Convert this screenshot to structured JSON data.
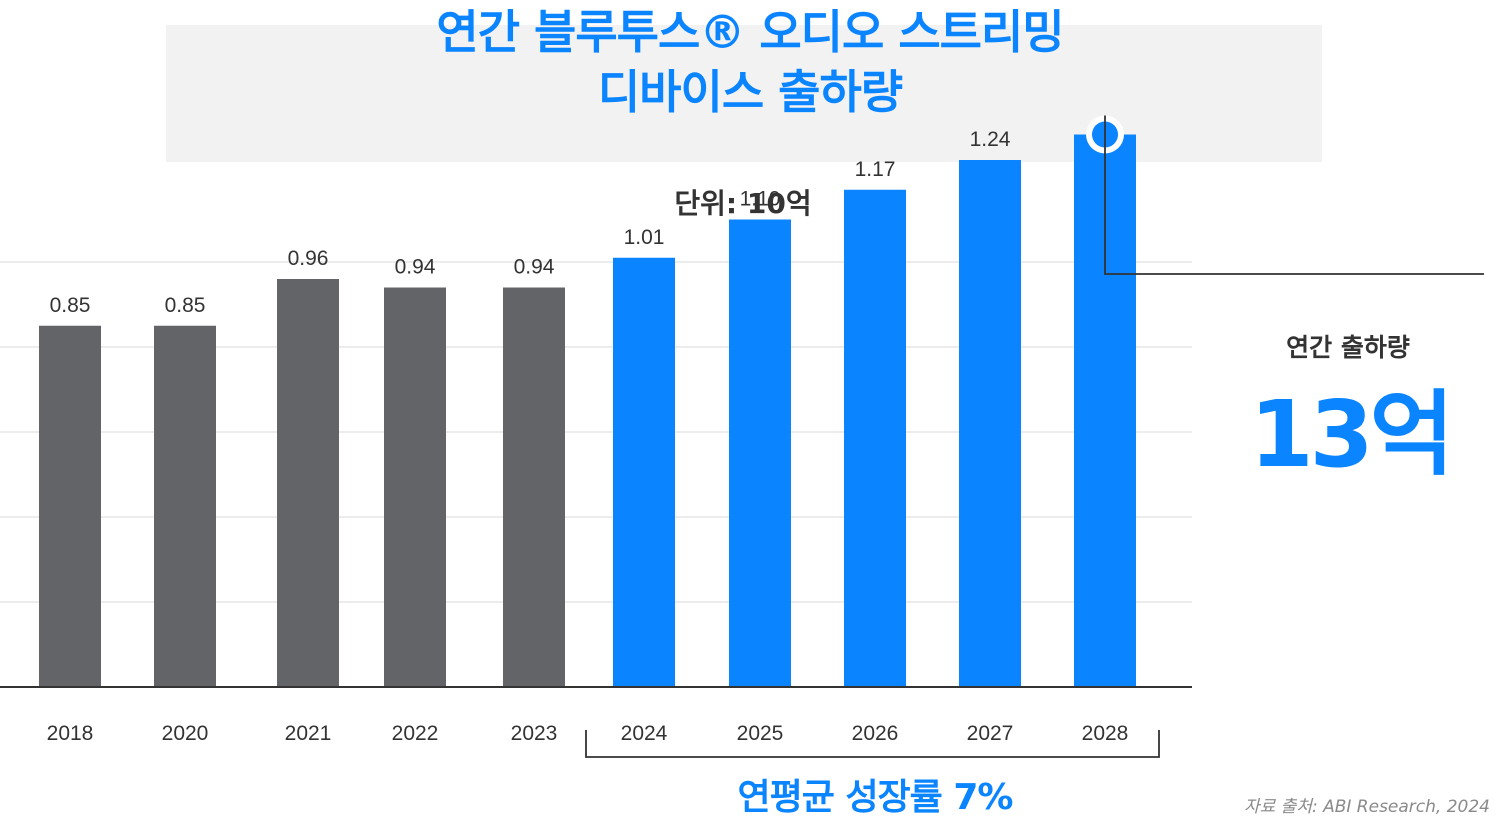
{
  "title": {
    "line1": "연간 블루투스® 오디오 스트리밍",
    "line2": "디바이스 출하량"
  },
  "unit_label": "단위: 10억",
  "callout": {
    "label": "연간 출하량",
    "value": "13억"
  },
  "cagr_label": "연평균 성장률 7%",
  "source": "자료 출처: ABI Research, 2024",
  "colors": {
    "historical": "#636468",
    "forecast": "#0a84ff",
    "grid": "#e6e6e6",
    "axis": "#333333",
    "text": "#333333"
  },
  "chart_data": {
    "type": "bar",
    "categories": [
      "2018",
      "2020",
      "2021",
      "2022",
      "2023",
      "2024",
      "2025",
      "2026",
      "2027",
      "2028"
    ],
    "values": [
      0.85,
      0.85,
      0.96,
      0.94,
      0.94,
      1.01,
      1.1,
      1.17,
      1.24,
      1.3
    ],
    "value_labels": [
      "0.85",
      "0.85",
      "0.96",
      "0.94",
      "0.94",
      "1.01",
      "1.10",
      "1.17",
      "1.24",
      ""
    ],
    "segments": [
      "historical",
      "historical",
      "historical",
      "historical",
      "historical",
      "forecast",
      "forecast",
      "forecast",
      "forecast",
      "forecast"
    ],
    "ylim": [
      0,
      1.5
    ],
    "grid": true,
    "title": "연간 블루투스® 오디오 스트리밍 디바이스 출하량",
    "ylabel": "단위: 10억",
    "xlabel": ""
  }
}
